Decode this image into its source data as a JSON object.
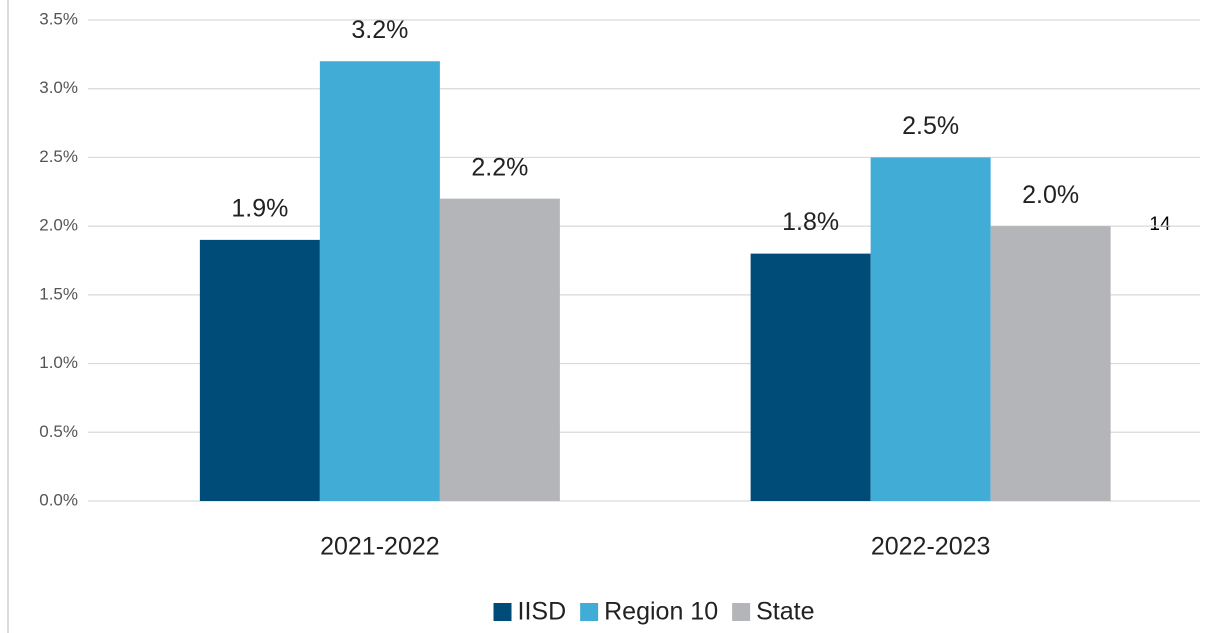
{
  "chart_data": {
    "type": "bar",
    "categories": [
      "2021-2022",
      "2022-2023"
    ],
    "series": [
      {
        "name": "IISD",
        "color": "#004c78",
        "values": [
          1.9,
          1.8
        ],
        "value_labels": [
          "1.9%",
          "1.8%"
        ]
      },
      {
        "name": "Region 10",
        "color": "#41acd6",
        "values": [
          3.2,
          2.5
        ],
        "value_labels": [
          "3.2%",
          "2.5%"
        ]
      },
      {
        "name": "State",
        "color": "#b3b5b8",
        "values": [
          2.2,
          2.0
        ],
        "value_labels": [
          "2.2%",
          "2.0%"
        ]
      }
    ],
    "ylim": [
      0,
      3.5
    ],
    "yticks": [
      {
        "value": 0,
        "label": "0.0%"
      },
      {
        "value": 0.5,
        "label": "0.5%"
      },
      {
        "value": 1,
        "label": "1.0%"
      },
      {
        "value": 1.5,
        "label": "1.5%"
      },
      {
        "value": 2,
        "label": "2.0%"
      },
      {
        "value": 2.5,
        "label": "2.5%"
      },
      {
        "value": 3,
        "label": "3.0%"
      },
      {
        "value": 3.5,
        "label": "3.5%"
      }
    ],
    "grid": true,
    "legend": "bottom",
    "annotations": [
      "14"
    ]
  }
}
